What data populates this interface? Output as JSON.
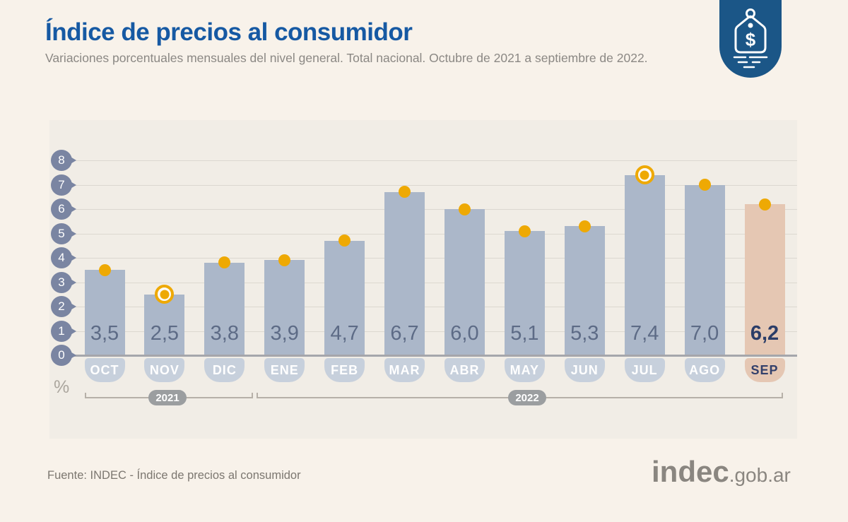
{
  "header": {
    "title": "Índice de precios al consumidor",
    "subtitle": "Variaciones porcentuales mensuales del nivel general. Total nacional. Octubre de 2021 a septiembre de 2022."
  },
  "chart_data": {
    "type": "bar",
    "title": "Índice de precios al consumidor",
    "categories": [
      "OCT",
      "NOV",
      "DIC",
      "ENE",
      "FEB",
      "MAR",
      "ABR",
      "MAY",
      "JUN",
      "JUL",
      "AGO",
      "SEP"
    ],
    "values": [
      3.5,
      2.5,
      3.8,
      3.9,
      4.7,
      6.7,
      6.0,
      5.1,
      5.3,
      7.4,
      7.0,
      6.2
    ],
    "value_labels": [
      "3,5",
      "2,5",
      "3,8",
      "3,9",
      "4,7",
      "6,7",
      "6,0",
      "5,1",
      "5,3",
      "7,4",
      "7,0",
      "6,2"
    ],
    "ylabel": "%",
    "ylim": [
      0,
      8
    ],
    "yticks": [
      0,
      1,
      2,
      3,
      4,
      5,
      6,
      7,
      8
    ],
    "grid": "horizontal",
    "legend": "none",
    "highlighted_category": "SEP",
    "ringed_dot_categories": [
      "NOV",
      "JUL"
    ],
    "year_groups": [
      {
        "label": "2021",
        "months": [
          "OCT",
          "NOV",
          "DIC"
        ]
      },
      {
        "label": "2022",
        "months": [
          "ENE",
          "FEB",
          "MAR",
          "ABR",
          "MAY",
          "JUN",
          "JUL",
          "AGO",
          "SEP"
        ]
      }
    ]
  },
  "footer": {
    "source": "Fuente: INDEC - Índice de precios al consumidor",
    "brand": "indec",
    "brand_suffix": ".gob.ar"
  },
  "icons": {
    "brand_badge": "price-tag-icon"
  },
  "colors": {
    "page_bg": "#F8F2EA",
    "plot_bg": "#F1EDE6",
    "title": "#1659A3",
    "badge": "#1B5687",
    "bar": "#ABB7C9",
    "bar_highlight": "#E5C7B3",
    "dot": "#EEA904",
    "tick": "#7A85A2",
    "month_pill": "#C7D0DC"
  }
}
